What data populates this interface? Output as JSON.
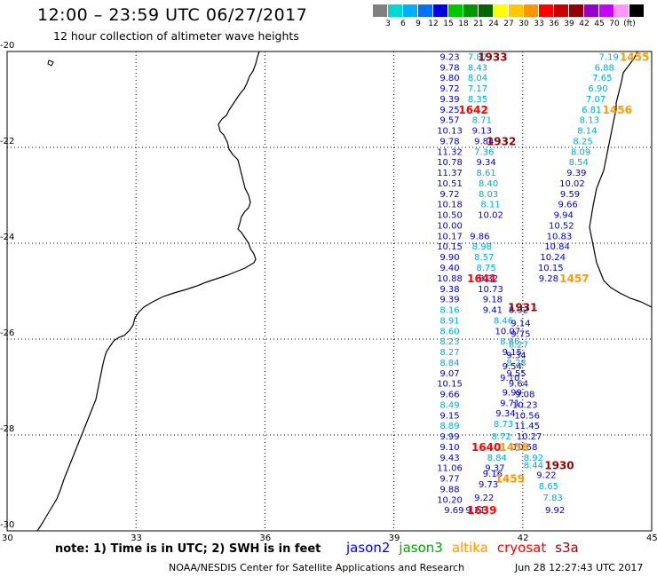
{
  "header": {
    "title": "12:00 – 23:59 UTC 06/27/2017",
    "subtitle": "12 hour collection of altimeter wave heights"
  },
  "colorbar": {
    "colors": [
      "#808080",
      "#00d8d8",
      "#00b0ff",
      "#0070ff",
      "#0000e0",
      "#00c800",
      "#009600",
      "#006400",
      "#ffff00",
      "#ffc800",
      "#ff9600",
      "#ff0000",
      "#c80000",
      "#960000",
      "#9600c8",
      "#c800ff",
      "#ff96ff",
      "#000000"
    ],
    "labels": [
      "3",
      "6",
      "9",
      "12",
      "15",
      "18",
      "21",
      "24",
      "27",
      "30",
      "33",
      "36",
      "39",
      "42",
      "45",
      "70",
      "(ft)"
    ]
  },
  "map": {
    "lon_range": [
      30,
      45
    ],
    "lat_range": [
      -30,
      -20
    ],
    "x_ticks": [
      "30",
      "33",
      "36",
      "39",
      "42",
      "45"
    ],
    "y_ticks": [
      "-20",
      "-22",
      "-24",
      "-26",
      "-28",
      "-30"
    ],
    "coastline_color": "#000000",
    "satellite_colors": {
      "jason2": "#0000cc",
      "jason3": "#009900",
      "altika": "#ff9900",
      "cryosat": "#ff0000",
      "s3a": "#990000",
      "jason2_light": "#00aadd"
    }
  },
  "wave_data": [
    {
      "sat": "jason2",
      "lon": 40.3,
      "lat": -20.1,
      "v": "9.23"
    },
    {
      "sat": "jason2_light",
      "lon": 40.95,
      "lat": -20.1,
      "v": "7.87"
    },
    {
      "sat": "jason2",
      "lon": 40.3,
      "lat": -20.32,
      "v": "9.78"
    },
    {
      "sat": "jason2_light",
      "lon": 40.95,
      "lat": -20.32,
      "v": "8.43"
    },
    {
      "sat": "jason2",
      "lon": 40.3,
      "lat": -20.54,
      "v": "9.80"
    },
    {
      "sat": "jason2_light",
      "lon": 40.95,
      "lat": -20.54,
      "v": "8.04"
    },
    {
      "sat": "jason2",
      "lon": 40.3,
      "lat": -20.76,
      "v": "9.72"
    },
    {
      "sat": "jason2_light",
      "lon": 40.95,
      "lat": -20.76,
      "v": "7.17"
    },
    {
      "sat": "jason2",
      "lon": 40.3,
      "lat": -20.98,
      "v": "9.39"
    },
    {
      "sat": "jason2_light",
      "lon": 40.95,
      "lat": -20.98,
      "v": "8.35"
    },
    {
      "sat": "jason2",
      "lon": 40.3,
      "lat": -21.2,
      "v": "9.25"
    },
    {
      "sat": "jason2",
      "lon": 40.3,
      "lat": -21.42,
      "v": "9.57"
    },
    {
      "sat": "jason2_light",
      "lon": 41.05,
      "lat": -21.42,
      "v": "8.71"
    },
    {
      "sat": "jason2",
      "lon": 40.3,
      "lat": -21.64,
      "v": "10.13"
    },
    {
      "sat": "jason2",
      "lon": 41.05,
      "lat": -21.64,
      "v": "9.13"
    },
    {
      "sat": "jason2",
      "lon": 40.3,
      "lat": -21.86,
      "v": "9.78"
    },
    {
      "sat": "jason2",
      "lon": 41.1,
      "lat": -21.86,
      "v": "9.84"
    },
    {
      "sat": "jason2",
      "lon": 40.3,
      "lat": -22.08,
      "v": "11.32"
    },
    {
      "sat": "jason2_light",
      "lon": 41.1,
      "lat": -22.08,
      "v": "7.36"
    },
    {
      "sat": "jason2",
      "lon": 40.3,
      "lat": -22.3,
      "v": "10.78"
    },
    {
      "sat": "jason2",
      "lon": 41.15,
      "lat": -22.3,
      "v": "9.34"
    },
    {
      "sat": "jason2",
      "lon": 40.3,
      "lat": -22.52,
      "v": "11.37"
    },
    {
      "sat": "jason2_light",
      "lon": 41.15,
      "lat": -22.52,
      "v": "8.61"
    },
    {
      "sat": "jason2",
      "lon": 40.3,
      "lat": -22.74,
      "v": "10.51"
    },
    {
      "sat": "jason2_light",
      "lon": 41.2,
      "lat": -22.74,
      "v": "8.40"
    },
    {
      "sat": "jason2",
      "lon": 40.3,
      "lat": -22.96,
      "v": "9.72"
    },
    {
      "sat": "jason2_light",
      "lon": 41.2,
      "lat": -22.96,
      "v": "8.03"
    },
    {
      "sat": "jason2",
      "lon": 40.3,
      "lat": -23.18,
      "v": "10.18"
    },
    {
      "sat": "jason2_light",
      "lon": 41.25,
      "lat": -23.18,
      "v": "8.11"
    },
    {
      "sat": "jason2",
      "lon": 40.3,
      "lat": -23.4,
      "v": "10.50"
    },
    {
      "sat": "jason2",
      "lon": 41.25,
      "lat": -23.4,
      "v": "10.02"
    },
    {
      "sat": "jason2",
      "lon": 40.3,
      "lat": -23.62,
      "v": "10.00"
    },
    {
      "sat": "jason2",
      "lon": 41.0,
      "lat": -23.84,
      "v": "9.86"
    },
    {
      "sat": "jason2",
      "lon": 40.3,
      "lat": -23.84,
      "v": "10.17"
    },
    {
      "sat": "jason2_light",
      "lon": 41.05,
      "lat": -24.06,
      "v": "8.98"
    },
    {
      "sat": "jason2",
      "lon": 40.3,
      "lat": -24.06,
      "v": "10.15"
    },
    {
      "sat": "jason2_light",
      "lon": 41.1,
      "lat": -24.28,
      "v": "8.57"
    },
    {
      "sat": "jason2",
      "lon": 40.3,
      "lat": -24.28,
      "v": "9.90"
    },
    {
      "sat": "jason2_light",
      "lon": 41.15,
      "lat": -24.5,
      "v": "8.75"
    },
    {
      "sat": "jason2",
      "lon": 40.3,
      "lat": -24.5,
      "v": "9.40"
    },
    {
      "sat": "jason2",
      "lon": 40.3,
      "lat": -24.72,
      "v": "10.88"
    },
    {
      "sat": "jason2",
      "lon": 41.2,
      "lat": -24.72,
      "v": "8.32"
    },
    {
      "sat": "jason2",
      "lon": 40.3,
      "lat": -24.94,
      "v": "9.38"
    },
    {
      "sat": "jason2",
      "lon": 41.25,
      "lat": -24.94,
      "v": "10.73"
    },
    {
      "sat": "jason2",
      "lon": 40.3,
      "lat": -25.16,
      "v": "9.39"
    },
    {
      "sat": "jason2",
      "lon": 41.3,
      "lat": -25.16,
      "v": "9.18"
    },
    {
      "sat": "jason2_light",
      "lon": 40.3,
      "lat": -25.38,
      "v": "8.16"
    },
    {
      "sat": "jason2",
      "lon": 41.3,
      "lat": -25.38,
      "v": "9.41"
    },
    {
      "sat": "jason2",
      "lon": 41.9,
      "lat": -25.38,
      "v": "8.92"
    },
    {
      "sat": "jason2_light",
      "lon": 40.3,
      "lat": -25.6,
      "v": "8.91"
    },
    {
      "sat": "jason2_light",
      "lon": 41.55,
      "lat": -25.6,
      "v": "8.46"
    },
    {
      "sat": "jason2",
      "lon": 41.95,
      "lat": -25.66,
      "v": "9.14"
    },
    {
      "sat": "jason2_light",
      "lon": 40.3,
      "lat": -25.82,
      "v": "8.60"
    },
    {
      "sat": "jason2",
      "lon": 41.65,
      "lat": -25.82,
      "v": "10.07"
    },
    {
      "sat": "jason2",
      "lon": 41.95,
      "lat": -25.88,
      "v": "9.75"
    },
    {
      "sat": "jason2_light",
      "lon": 40.3,
      "lat": -26.04,
      "v": "8.23"
    },
    {
      "sat": "jason2_light",
      "lon": 41.7,
      "lat": -26.04,
      "v": "8.86"
    },
    {
      "sat": "jason2_light",
      "lon": 41.9,
      "lat": -26.1,
      "v": "8.27"
    },
    {
      "sat": "jason2_light",
      "lon": 40.3,
      "lat": -26.26,
      "v": "8.27"
    },
    {
      "sat": "jason2",
      "lon": 41.75,
      "lat": -26.26,
      "v": "9.15"
    },
    {
      "sat": "jason2",
      "lon": 41.85,
      "lat": -26.32,
      "v": "9.34"
    },
    {
      "sat": "jason2_light",
      "lon": 40.3,
      "lat": -26.48,
      "v": "8.84"
    },
    {
      "sat": "jason2_light",
      "lon": 41.85,
      "lat": -26.48,
      "v": "8.28"
    },
    {
      "sat": "jason2",
      "lon": 41.75,
      "lat": -26.56,
      "v": "9.54"
    },
    {
      "sat": "jason2",
      "lon": 40.3,
      "lat": -26.7,
      "v": "9.07"
    },
    {
      "sat": "jason2",
      "lon": 41.85,
      "lat": -26.7,
      "v": "9.55"
    },
    {
      "sat": "jason2",
      "lon": 41.7,
      "lat": -26.8,
      "v": "9.10"
    },
    {
      "sat": "jason2",
      "lon": 40.3,
      "lat": -26.92,
      "v": "10.15"
    },
    {
      "sat": "jason2",
      "lon": 41.9,
      "lat": -26.92,
      "v": "9.64"
    },
    {
      "sat": "jason2",
      "lon": 40.3,
      "lat": -27.14,
      "v": "9.66"
    },
    {
      "sat": "jason2",
      "lon": 41.75,
      "lat": -27.1,
      "v": "9.99"
    },
    {
      "sat": "jason2",
      "lon": 42.05,
      "lat": -27.14,
      "v": "9.08"
    },
    {
      "sat": "jason2_light",
      "lon": 40.3,
      "lat": -27.36,
      "v": "8.49"
    },
    {
      "sat": "jason2",
      "lon": 41.7,
      "lat": -27.32,
      "v": "9.71"
    },
    {
      "sat": "jason2",
      "lon": 42.05,
      "lat": -27.36,
      "v": "10.23"
    },
    {
      "sat": "jason2",
      "lon": 40.3,
      "lat": -27.58,
      "v": "9.15"
    },
    {
      "sat": "jason2",
      "lon": 41.6,
      "lat": -27.54,
      "v": "9.34"
    },
    {
      "sat": "jason2",
      "lon": 42.1,
      "lat": -27.58,
      "v": "10.56"
    },
    {
      "sat": "jason2_light",
      "lon": 40.3,
      "lat": -27.8,
      "v": "8.89"
    },
    {
      "sat": "jason2_light",
      "lon": 41.55,
      "lat": -27.76,
      "v": "8.73"
    },
    {
      "sat": "jason2",
      "lon": 42.1,
      "lat": -27.8,
      "v": "11.45"
    },
    {
      "sat": "jason2",
      "lon": 40.3,
      "lat": -28.02,
      "v": "9.99"
    },
    {
      "sat": "jason2_light",
      "lon": 41.5,
      "lat": -28.02,
      "v": "8.72"
    },
    {
      "sat": "jason2",
      "lon": 42.15,
      "lat": -28.02,
      "v": "10.27"
    },
    {
      "sat": "jason2",
      "lon": 40.3,
      "lat": -28.24,
      "v": "9.10"
    },
    {
      "sat": "jason2",
      "lon": 42.05,
      "lat": -28.24,
      "v": "10.58"
    },
    {
      "sat": "jason2",
      "lon": 40.3,
      "lat": -28.46,
      "v": "9.43"
    },
    {
      "sat": "jason2_light",
      "lon": 41.4,
      "lat": -28.46,
      "v": "8.84"
    },
    {
      "sat": "jason2_light",
      "lon": 42.25,
      "lat": -28.46,
      "v": "8.92"
    },
    {
      "sat": "jason2_light",
      "lon": 42.25,
      "lat": -28.62,
      "v": "8.44"
    },
    {
      "sat": "jason2",
      "lon": 40.3,
      "lat": -28.68,
      "v": "11.06"
    },
    {
      "sat": "jason2",
      "lon": 41.35,
      "lat": -28.68,
      "v": "9.37"
    },
    {
      "sat": "jason2",
      "lon": 40.3,
      "lat": -28.9,
      "v": "9.77"
    },
    {
      "sat": "jason2",
      "lon": 41.3,
      "lat": -28.8,
      "v": "9.16"
    },
    {
      "sat": "jason2",
      "lon": 42.55,
      "lat": -28.82,
      "v": "9.22"
    },
    {
      "sat": "jason2",
      "lon": 40.3,
      "lat": -29.12,
      "v": "9.88"
    },
    {
      "sat": "jason2",
      "lon": 41.2,
      "lat": -29.02,
      "v": "9.73"
    },
    {
      "sat": "jason2_light",
      "lon": 42.6,
      "lat": -29.06,
      "v": "8.65"
    },
    {
      "sat": "jason2",
      "lon": 40.3,
      "lat": -29.34,
      "v": "10.20"
    },
    {
      "sat": "jason2",
      "lon": 41.1,
      "lat": -29.3,
      "v": "9.22"
    },
    {
      "sat": "jason2_light",
      "lon": 42.7,
      "lat": -29.3,
      "v": "7.83"
    },
    {
      "sat": "jason2",
      "lon": 40.4,
      "lat": -29.56,
      "v": "9.69"
    },
    {
      "sat": "jason2",
      "lon": 40.9,
      "lat": -29.56,
      "v": "9.21"
    },
    {
      "sat": "jason2",
      "lon": 42.75,
      "lat": -29.56,
      "v": "9.92"
    },
    {
      "sat": "jason2_light",
      "lon": 44.0,
      "lat": -20.1,
      "v": "7.19"
    },
    {
      "sat": "jason2_light",
      "lon": 43.9,
      "lat": -20.32,
      "v": "6.88"
    },
    {
      "sat": "jason2_light",
      "lon": 43.85,
      "lat": -20.54,
      "v": "7.65"
    },
    {
      "sat": "jason2_light",
      "lon": 43.75,
      "lat": -20.76,
      "v": "6.90"
    },
    {
      "sat": "jason2_light",
      "lon": 43.7,
      "lat": -20.98,
      "v": "7.07"
    },
    {
      "sat": "jason2_light",
      "lon": 43.6,
      "lat": -21.2,
      "v": "6.81"
    },
    {
      "sat": "jason2_light",
      "lon": 43.55,
      "lat": -21.42,
      "v": "8.13"
    },
    {
      "sat": "jason2_light",
      "lon": 43.5,
      "lat": -21.64,
      "v": "8.14"
    },
    {
      "sat": "jason2_light",
      "lon": 43.4,
      "lat": -21.86,
      "v": "8.25"
    },
    {
      "sat": "jason2_light",
      "lon": 43.35,
      "lat": -22.08,
      "v": "8.09"
    },
    {
      "sat": "jason2_light",
      "lon": 43.3,
      "lat": -22.3,
      "v": "8.54"
    },
    {
      "sat": "jason2",
      "lon": 43.25,
      "lat": -22.52,
      "v": "9.39"
    },
    {
      "sat": "jason2",
      "lon": 43.15,
      "lat": -22.74,
      "v": "10.02"
    },
    {
      "sat": "jason2",
      "lon": 43.1,
      "lat": -22.96,
      "v": "9.59"
    },
    {
      "sat": "jason2",
      "lon": 43.05,
      "lat": -23.18,
      "v": "9.66"
    },
    {
      "sat": "jason2",
      "lon": 42.95,
      "lat": -23.4,
      "v": "9.94"
    },
    {
      "sat": "jason2",
      "lon": 42.9,
      "lat": -23.62,
      "v": "10.52"
    },
    {
      "sat": "jason2",
      "lon": 42.85,
      "lat": -23.84,
      "v": "10.83"
    },
    {
      "sat": "jason2",
      "lon": 42.8,
      "lat": -24.06,
      "v": "10.84"
    },
    {
      "sat": "jason2",
      "lon": 42.7,
      "lat": -24.28,
      "v": "10.24"
    },
    {
      "sat": "jason2",
      "lon": 42.65,
      "lat": -24.5,
      "v": "10.15"
    },
    {
      "sat": "jason2",
      "lon": 42.6,
      "lat": -24.72,
      "v": "9.28"
    }
  ],
  "time_labels": [
    {
      "sat": "s3a",
      "lon": 41.3,
      "lat": -20.1,
      "t": "1933"
    },
    {
      "sat": "cryosat",
      "lon": 40.85,
      "lat": -21.2,
      "t": "1642"
    },
    {
      "sat": "s3a",
      "lon": 41.5,
      "lat": -21.86,
      "t": "1932"
    },
    {
      "sat": "cryosat",
      "lon": 41.05,
      "lat": -24.72,
      "t": "1641"
    },
    {
      "sat": "s3a",
      "lon": 42.0,
      "lat": -25.32,
      "t": "1931"
    },
    {
      "sat": "cryosat",
      "lon": 41.15,
      "lat": -28.24,
      "t": "1640"
    },
    {
      "sat": "s3a",
      "lon": 42.85,
      "lat": -28.62,
      "t": "1930"
    },
    {
      "sat": "cryosat",
      "lon": 41.05,
      "lat": -29.56,
      "t": "1639"
    },
    {
      "sat": "altika",
      "lon": 44.6,
      "lat": -20.1,
      "t": "1455"
    },
    {
      "sat": "altika",
      "lon": 44.2,
      "lat": -21.2,
      "t": "1456"
    },
    {
      "sat": "altika",
      "lon": 43.2,
      "lat": -24.72,
      "t": "1457"
    },
    {
      "sat": "altika",
      "lon": 41.8,
      "lat": -28.24,
      "t": "1458"
    },
    {
      "sat": "altika",
      "lon": 41.7,
      "lat": -28.9,
      "t": "1459"
    }
  ],
  "footer": {
    "note": "note:  1) Time is in UTC;  2) SWH is in feet",
    "legend": [
      {
        "label": "jason2",
        "color": "#0000ff"
      },
      {
        "label": "jason3",
        "color": "#00aa00"
      },
      {
        "label": "altika",
        "color": "#ff9900"
      },
      {
        "label": "cryosat",
        "color": "#ff0000"
      },
      {
        "label": "s3a",
        "color": "#990000"
      }
    ],
    "credit": "NOAA/NESDIS Center for Satellite Applications and Research",
    "timestamp": "Jun 28 12:27:43 UTC 2017"
  }
}
